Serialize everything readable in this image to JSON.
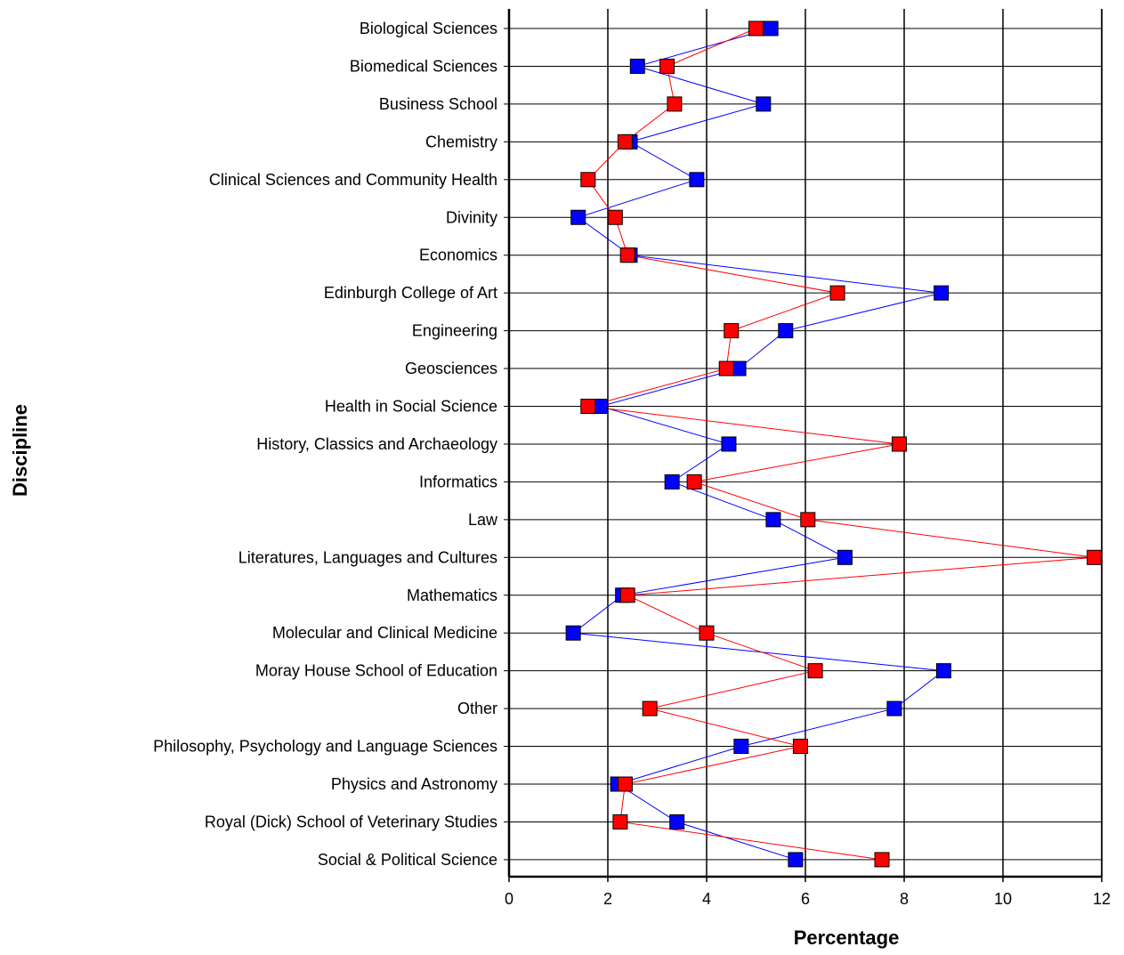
{
  "chart_data": {
    "type": "line",
    "title": "",
    "xlabel": "Percentage",
    "ylabel": "Discipline",
    "xlim": [
      0,
      12
    ],
    "xticks": [
      "0",
      "2",
      "4",
      "6",
      "8",
      "10",
      "12"
    ],
    "grid": true,
    "categories": [
      "Biological Sciences",
      "Biomedical Sciences",
      "Business School",
      "Chemistry",
      "Clinical Sciences and Community Health",
      "Divinity",
      "Economics",
      "Edinburgh College of Art",
      "Engineering",
      "Geosciences",
      "Health in Social Science",
      "History, Classics and Archaeology",
      "Informatics",
      "Law",
      "Literatures, Languages and Cultures",
      "Mathematics",
      "Molecular and Clinical Medicine",
      "Moray House School of Education",
      "Other",
      "Philosophy, Psychology and Language Sciences",
      "Physics and Astronomy",
      "Royal (Dick) School of Veterinary Studies",
      "Social & Political Science"
    ],
    "series": [
      {
        "color": "#0000ff",
        "values": [
          5.3,
          2.6,
          5.15,
          2.45,
          3.8,
          1.4,
          2.45,
          8.75,
          5.6,
          4.65,
          1.85,
          4.45,
          3.3,
          5.35,
          6.8,
          2.3,
          1.3,
          8.8,
          7.8,
          4.7,
          2.2,
          3.4,
          5.8
        ]
      },
      {
        "color": "#ff0000",
        "values": [
          5.0,
          3.2,
          3.35,
          2.35,
          1.6,
          2.15,
          2.4,
          6.65,
          4.5,
          4.4,
          1.6,
          7.9,
          3.75,
          6.05,
          11.85,
          2.4,
          4.0,
          6.2,
          2.85,
          5.9,
          2.35,
          2.25,
          7.55
        ]
      }
    ]
  }
}
